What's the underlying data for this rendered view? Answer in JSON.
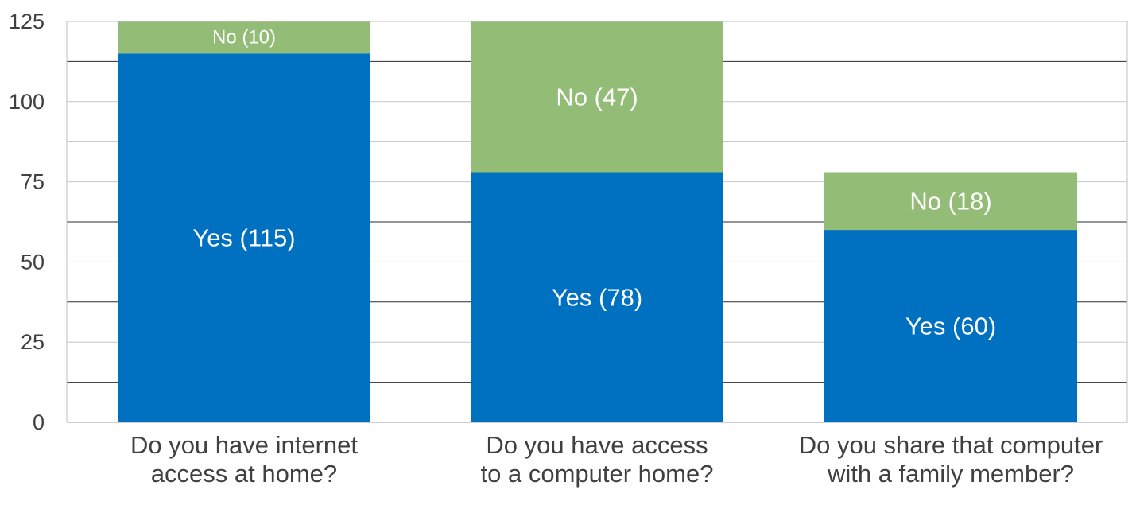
{
  "chart_data": {
    "type": "bar",
    "stacked": true,
    "categories": [
      [
        "Do you have internet",
        "access at home?"
      ],
      [
        "Do you have access",
        "to a computer home?"
      ],
      [
        "Do you share that computer",
        "with a family member?"
      ]
    ],
    "series": [
      {
        "values": [
          115,
          78,
          60
        ],
        "labels": [
          "Yes (115)",
          "Yes (78)",
          "Yes (60)"
        ],
        "color": "#0070c0"
      },
      {
        "values": [
          10,
          47,
          18
        ],
        "labels": [
          "No (10)",
          "No (47)",
          "No (18)"
        ],
        "color": "#93bd76"
      }
    ],
    "ylim": [
      0,
      125
    ],
    "yticks": [
      0,
      25,
      50,
      75,
      100,
      125
    ],
    "grid": true,
    "legend": "none"
  }
}
